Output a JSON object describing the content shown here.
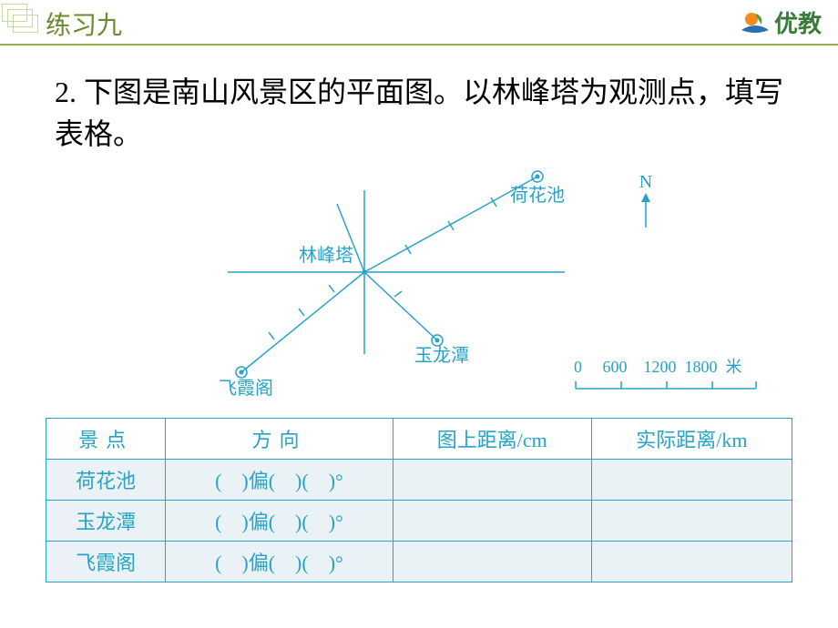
{
  "header": {
    "section_title": "练习九",
    "logo_text": "优教"
  },
  "question": {
    "number": "2.",
    "text": "下图是南山风景区的平面图。以林峰塔为观测点，填写表格。"
  },
  "diagram": {
    "labels": {
      "center": "林峰塔",
      "northeast": "荷花池",
      "southeast": "玉龙潭",
      "southwest": "飞霞阁"
    },
    "compass": {
      "north": "N"
    },
    "scale": {
      "ticks": [
        "0",
        "600",
        "1200",
        "1800"
      ],
      "unit": "米"
    },
    "colors": {
      "line": "#27a3c7",
      "text": "#27a3c7"
    }
  },
  "table": {
    "headers": {
      "col1": "景点",
      "col2": "方向",
      "col3": "图上距离/cm",
      "col4": "实际距离/km"
    },
    "direction_template": {
      "open": "(",
      "close": ")",
      "pian": "偏",
      "deg": "°"
    },
    "rows": [
      {
        "name": "荷花池",
        "map_dist": "",
        "real_dist": ""
      },
      {
        "name": "玉龙潭",
        "map_dist": "",
        "real_dist": ""
      },
      {
        "name": "飞霞阁",
        "map_dist": "",
        "real_dist": ""
      }
    ]
  }
}
